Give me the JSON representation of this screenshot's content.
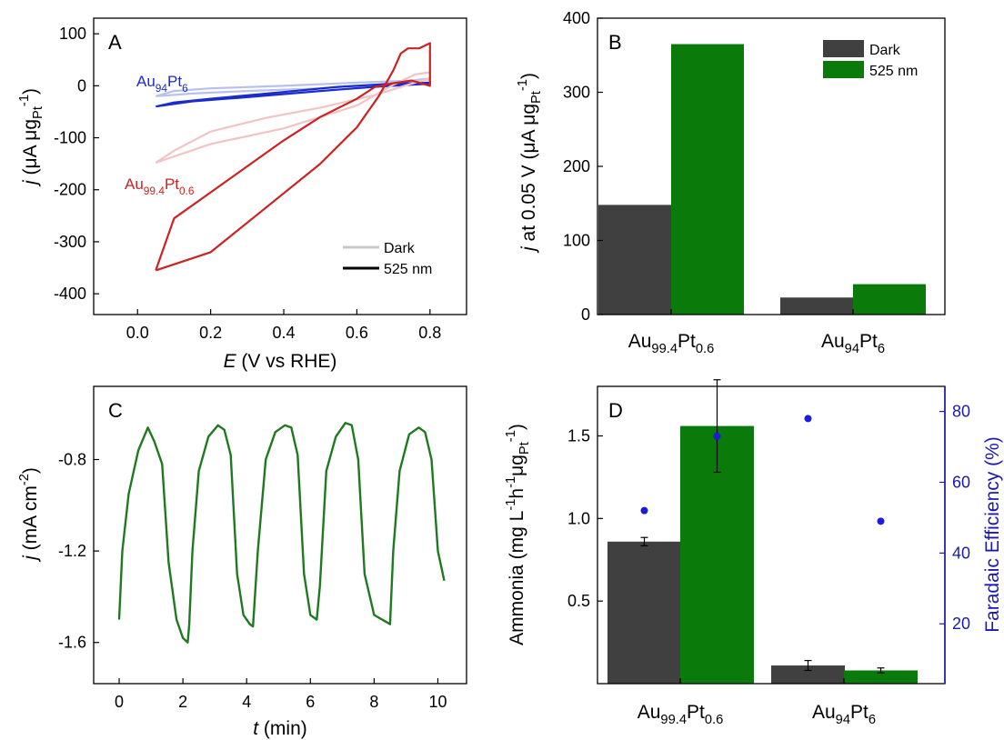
{
  "chart_data": [
    {
      "panel": "A",
      "type": "line",
      "xlabel": "E (V vs RHE)",
      "xlabel_var": "E",
      "xlabel_rest": "(V vs RHE)",
      "ylabel": "j (μA μgPt-1)",
      "ylabel_var": "j",
      "ylabel_rest": "(μA μg",
      "ylabel_sub": "Pt",
      "ylabel_sup": "-1",
      "ylabel_end": ")",
      "xlim": [
        -0.12,
        0.9
      ],
      "ylim": [
        -440,
        130
      ],
      "xticks": [
        "0.0",
        "0.2",
        "0.4",
        "0.6",
        "0.8"
      ],
      "yticks": [
        "100",
        "0",
        "-100",
        "-200",
        "-300",
        "-400"
      ],
      "legend": {
        "position": "bottom-right",
        "entries": [
          "Dark",
          "525 nm"
        ]
      },
      "annotations": [
        {
          "base": "Au",
          "sub1": "94",
          "mid": "Pt",
          "sub2": "6",
          "color": "#1a2ccc"
        },
        {
          "base": "Au",
          "sub1": "99.4",
          "mid": "Pt",
          "sub2": "0.6",
          "color": "#cc2222"
        }
      ],
      "series": [
        {
          "name": "Au94Pt6 Dark",
          "color": "#b8c0ee",
          "x": [
            0.05,
            0.15,
            0.3,
            0.5,
            0.65,
            0.75,
            0.8,
            0.8,
            0.75,
            0.6,
            0.4,
            0.2,
            0.1,
            0.05
          ],
          "y": [
            -20,
            -15,
            -10,
            -5,
            2,
            10,
            14,
            12,
            10,
            6,
            0,
            -5,
            -10,
            -20
          ]
        },
        {
          "name": "Au94Pt6 525 nm",
          "color": "#1a2ccc",
          "x": [
            0.05,
            0.15,
            0.3,
            0.5,
            0.65,
            0.75,
            0.8,
            0.8,
            0.7,
            0.55,
            0.4,
            0.2,
            0.1,
            0.05
          ],
          "y": [
            -40,
            -30,
            -22,
            -10,
            -2,
            2,
            4,
            6,
            4,
            -2,
            -12,
            -25,
            -32,
            -40
          ]
        },
        {
          "name": "Au99.4Pt0.6 Dark",
          "color": "#f0c4c4",
          "x": [
            0.05,
            0.2,
            0.4,
            0.6,
            0.7,
            0.76,
            0.8,
            0.8,
            0.74,
            0.65,
            0.5,
            0.35,
            0.2,
            0.1,
            0.05
          ],
          "y": [
            -148,
            -112,
            -82,
            -38,
            2,
            22,
            26,
            14,
            2,
            -18,
            -42,
            -62,
            -88,
            -125,
            -148
          ]
        },
        {
          "name": "Au99.4Pt0.6 525 nm",
          "color": "#cc2222",
          "x": [
            0.05,
            0.2,
            0.35,
            0.5,
            0.6,
            0.66,
            0.7,
            0.72,
            0.74,
            0.77,
            0.8,
            0.8,
            0.75,
            0.7,
            0.65,
            0.6,
            0.5,
            0.4,
            0.3,
            0.2,
            0.1,
            0.05
          ],
          "y": [
            -355,
            -320,
            -235,
            -150,
            -80,
            -20,
            30,
            62,
            72,
            72,
            82,
            0,
            10,
            5,
            -2,
            -25,
            -60,
            -105,
            -155,
            -205,
            -255,
            -355
          ]
        }
      ]
    },
    {
      "panel": "B",
      "type": "bar",
      "ylabel": "j at 0.05 V (μA μgPt-1)",
      "ylabel_var": "j",
      "ylabel_rest": "at 0.05 V  (μA μg",
      "ylabel_sub": "Pt",
      "ylabel_sup": "-1",
      "ylabel_end": ")",
      "ylim": [
        0,
        400
      ],
      "yticks": [
        "0",
        "100",
        "200",
        "300",
        "400"
      ],
      "categories": [
        {
          "base": "Au",
          "sub1": "99.4",
          "mid": "Pt",
          "sub2": "0.6"
        },
        {
          "base": "Au",
          "sub1": "94",
          "mid": "Pt",
          "sub2": "6"
        }
      ],
      "legend": {
        "position": "top-right"
      },
      "series": [
        {
          "name": "Dark",
          "color": "#404040",
          "values": [
            148,
            23
          ]
        },
        {
          "name": "525 nm",
          "color": "#0a7a0a",
          "values": [
            365,
            41
          ]
        }
      ]
    },
    {
      "panel": "C",
      "type": "line",
      "xlabel": "t (min)",
      "xlabel_var": "t",
      "xlabel_rest": "(min)",
      "ylabel": "j (mA cm-2)",
      "ylabel_var": "j",
      "ylabel_rest": "(mA cm",
      "ylabel_sup": "-2",
      "ylabel_end": ")",
      "xlim": [
        -0.8,
        10.9
      ],
      "ylim": [
        -1.78,
        -0.48
      ],
      "xticks": [
        "0",
        "2",
        "4",
        "6",
        "8",
        "10"
      ],
      "yticks": [
        "-0.8",
        "-1.2",
        "-1.6"
      ],
      "series": [
        {
          "name": "current",
          "color": "#1f7a1f",
          "x": [
            0,
            0.1,
            0.3,
            0.6,
            0.9,
            1.1,
            1.35,
            1.55,
            1.8,
            2.0,
            2.15,
            2.2,
            2.3,
            2.5,
            2.8,
            3.1,
            3.3,
            3.5,
            3.7,
            3.9,
            4.1,
            4.2,
            4.35,
            4.6,
            4.9,
            5.2,
            5.4,
            5.6,
            5.8,
            6.0,
            6.2,
            6.3,
            6.5,
            6.8,
            7.1,
            7.3,
            7.5,
            7.7,
            8.0,
            8.5,
            8.6,
            8.8,
            9.1,
            9.4,
            9.6,
            9.8,
            10.0,
            10.2
          ],
          "y": [
            -1.5,
            -1.2,
            -0.95,
            -0.76,
            -0.66,
            -0.72,
            -0.82,
            -1.25,
            -1.5,
            -1.58,
            -1.6,
            -1.52,
            -1.2,
            -0.85,
            -0.7,
            -0.65,
            -0.67,
            -0.78,
            -1.3,
            -1.48,
            -1.52,
            -1.53,
            -1.2,
            -0.8,
            -0.68,
            -0.65,
            -0.66,
            -0.78,
            -1.3,
            -1.48,
            -1.5,
            -1.35,
            -0.85,
            -0.7,
            -0.64,
            -0.65,
            -0.8,
            -1.3,
            -1.48,
            -1.52,
            -1.2,
            -0.85,
            -0.69,
            -0.66,
            -0.68,
            -0.8,
            -1.2,
            -1.33
          ]
        }
      ]
    },
    {
      "panel": "D",
      "type": "bar",
      "ylabel": "Ammonia (mg L-1h-1μgPt-1)",
      "ylabel_rest": "Ammonia (mg L",
      "ylabel_sup1": "-1",
      "ylabel_mid": "h",
      "ylabel_sup2": "-1",
      "ylabel_mid2": "μg",
      "ylabel_sub": "Pt",
      "ylabel_sup3": "-1",
      "ylabel_end": ")",
      "y2label": "Faradaic Efficiency (%)",
      "y2color": "#1a1ab0",
      "ylim": [
        0,
        1.8
      ],
      "yticks": [
        "0.5",
        "1.0",
        "1.5"
      ],
      "y2lim": [
        3.1,
        87.1
      ],
      "y2ticks": [
        "20",
        "40",
        "60",
        "80"
      ],
      "categories": [
        {
          "base": "Au",
          "sub1": "99.4",
          "mid": "Pt",
          "sub2": "0.6"
        },
        {
          "base": "Au",
          "sub1": "94",
          "mid": "Pt",
          "sub2": "6"
        }
      ],
      "series": [
        {
          "name": "Dark",
          "color": "#404040",
          "values": [
            0.86,
            0.11
          ],
          "errors": [
            0.025,
            0.03
          ]
        },
        {
          "name": "525 nm",
          "color": "#0a7a0a",
          "values": [
            1.56,
            0.08
          ],
          "errors": [
            0.28,
            0.015
          ]
        }
      ],
      "faradaic_efficiency": {
        "color": "#1a1ae0",
        "values": [
          [
            52,
            73
          ],
          [
            78,
            49
          ]
        ]
      }
    }
  ],
  "panel_letters": [
    "A",
    "B",
    "C",
    "D"
  ]
}
